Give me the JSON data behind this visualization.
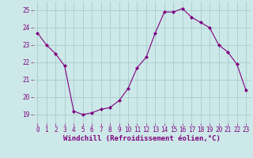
{
  "x": [
    0,
    1,
    2,
    3,
    4,
    5,
    6,
    7,
    8,
    9,
    10,
    11,
    12,
    13,
    14,
    15,
    16,
    17,
    18,
    19,
    20,
    21,
    22,
    23
  ],
  "y": [
    23.7,
    23.0,
    22.5,
    21.8,
    19.2,
    19.0,
    19.1,
    19.3,
    19.4,
    19.8,
    20.5,
    21.7,
    22.3,
    23.7,
    24.9,
    24.9,
    25.1,
    24.6,
    24.3,
    24.0,
    23.0,
    22.6,
    21.9,
    20.4
  ],
  "line_color": "#800080",
  "marker": "D",
  "marker_size": 2,
  "bg_color": "#cce8e8",
  "grid_color": "#aacccc",
  "xlabel": "Windchill (Refroidissement éolien,°C)",
  "xlabel_color": "#800080",
  "xlabel_fontsize": 6.5,
  "tick_color": "#800080",
  "tick_fontsize": 5.5,
  "ylim": [
    18.5,
    25.5
  ],
  "yticks": [
    19,
    20,
    21,
    22,
    23,
    24,
    25
  ],
  "xlim": [
    -0.5,
    23.5
  ]
}
